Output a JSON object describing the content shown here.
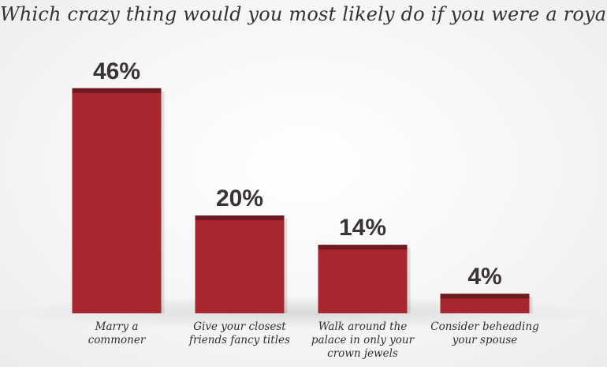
{
  "chart_data": {
    "type": "bar",
    "title": "Which crazy thing would you most likely do if you were a royal?",
    "categories": [
      [
        "Marry a",
        "commoner"
      ],
      [
        "Give your closest",
        "friends fancy titles"
      ],
      [
        "Walk around the",
        "palace in only your",
        "crown jewels"
      ],
      [
        "Consider beheading",
        "your spouse"
      ]
    ],
    "values": [
      46,
      20,
      14,
      4
    ],
    "value_labels": [
      "46%",
      "20%",
      "14%",
      "4%"
    ],
    "ylim": [
      0,
      50
    ],
    "xlabel": "",
    "ylabel": "",
    "grid": false,
    "bar_color": "#a8262d",
    "bar_top_color": "#6e1a1e"
  }
}
